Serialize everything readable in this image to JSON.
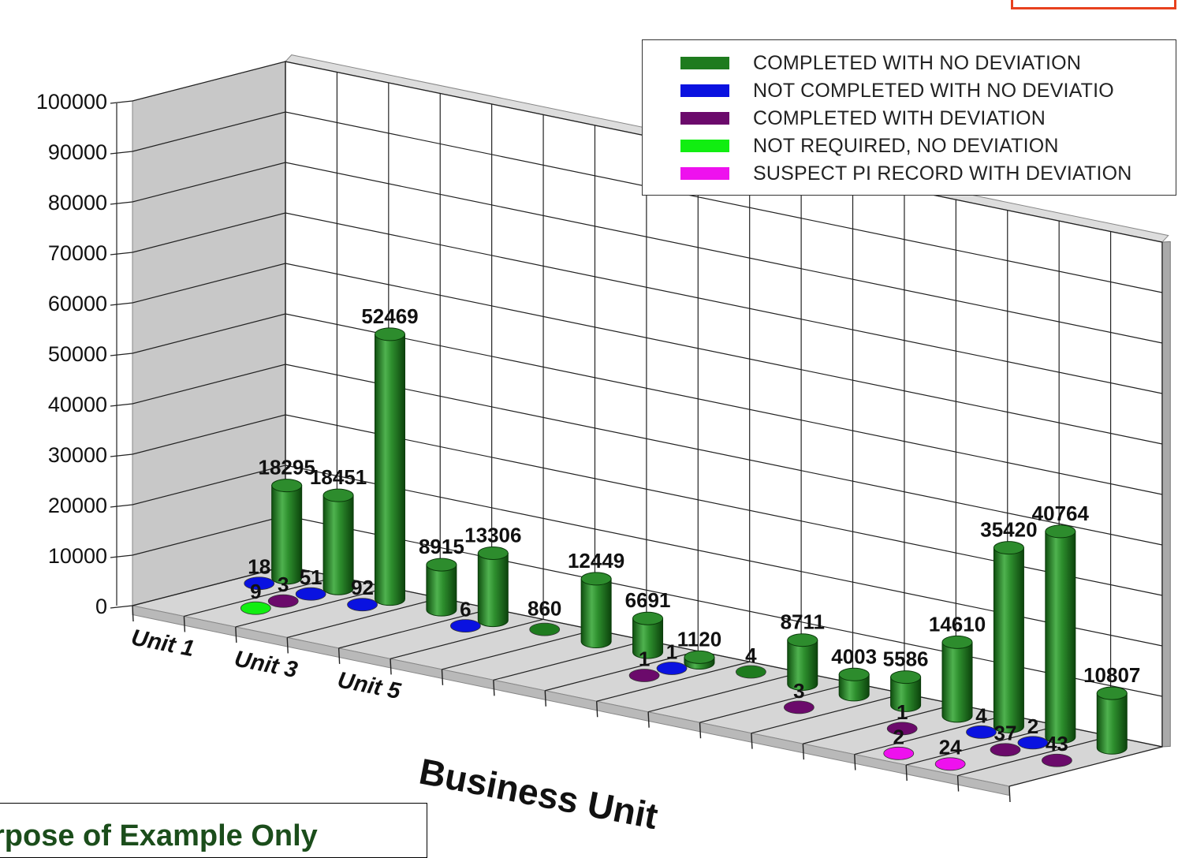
{
  "chart_data": {
    "type": "bar",
    "style": "3d-cylinder",
    "xlabel": "Business Unit",
    "ylabel": "",
    "ylim": [
      0,
      100000
    ],
    "yticks": [
      0,
      10000,
      20000,
      30000,
      40000,
      50000,
      60000,
      70000,
      80000,
      90000,
      100000
    ],
    "xtick_labels": [
      "Unit 1",
      "Unit 3",
      "Unit 5"
    ],
    "grid": true,
    "legend_position": "top-right",
    "series": [
      {
        "name": "COMPLETED WITH NO DEVIATION",
        "color": "#1e7b1e",
        "points": [
          {
            "x": 1,
            "value": 18295,
            "label": "18295"
          },
          {
            "x": 2,
            "value": 18451,
            "label": "18451"
          },
          {
            "x": 3,
            "value": 52469,
            "label": "52469"
          },
          {
            "x": 4,
            "value": 8915,
            "label": "8915"
          },
          {
            "x": 5,
            "value": 13306,
            "label": "13306"
          },
          {
            "x": 6,
            "value": 860,
            "label": "860"
          },
          {
            "x": 7,
            "value": 12449,
            "label": "12449"
          },
          {
            "x": 8,
            "value": 6691,
            "label": "6691"
          },
          {
            "x": 9,
            "value": 1120,
            "label": "1120"
          },
          {
            "x": 10,
            "value": 4,
            "label": "4"
          },
          {
            "x": 11,
            "value": 8711,
            "label": "8711"
          },
          {
            "x": 12,
            "value": 4003,
            "label": "4003"
          },
          {
            "x": 13,
            "value": 5586,
            "label": "5586"
          },
          {
            "x": 14,
            "value": 14610,
            "label": "14610"
          },
          {
            "x": 15,
            "value": 35420,
            "label": "35420"
          },
          {
            "x": 16,
            "value": 40764,
            "label": "40764"
          },
          {
            "x": 17,
            "value": 10807,
            "label": "10807"
          }
        ]
      },
      {
        "name": "NOT COMPLETED WITH NO DEVIATIO",
        "color": "#0a12e0",
        "points": [
          {
            "x": 1,
            "value": 18,
            "label": "18"
          },
          {
            "x": 2,
            "value": 51,
            "label": "51"
          },
          {
            "x": 3,
            "value": 92,
            "label": "92"
          },
          {
            "x": 5,
            "value": 6,
            "label": "6"
          },
          {
            "x": 9,
            "value": 1,
            "label": "1"
          },
          {
            "x": 15,
            "value": 4,
            "label": "4"
          },
          {
            "x": 16,
            "value": 2,
            "label": "2"
          }
        ]
      },
      {
        "name": "COMPLETED WITH DEVIATION",
        "color": "#6b0a6b",
        "points": [
          {
            "x": 2,
            "value": 3,
            "label": "3"
          },
          {
            "x": 9,
            "value": 1,
            "label": "1"
          },
          {
            "x": 12,
            "value": 3,
            "label": "3"
          },
          {
            "x": 14,
            "value": 1,
            "label": "1"
          },
          {
            "x": 16,
            "value": 37,
            "label": "37"
          },
          {
            "x": 17,
            "value": 43,
            "label": "43"
          }
        ]
      },
      {
        "name": "NOT REQUIRED, NO DEVIATION",
        "color": "#11ee11",
        "points": [
          {
            "x": 2,
            "value": 9,
            "label": "9"
          }
        ]
      },
      {
        "name": "SUSPECT PI RECORD WITH DEVIATION",
        "color": "#ee11ee",
        "points": [
          {
            "x": 15,
            "value": 2,
            "label": "2"
          },
          {
            "x": 16,
            "value": 24,
            "label": "24"
          }
        ]
      }
    ]
  },
  "footnote": "rpose of Example Only"
}
